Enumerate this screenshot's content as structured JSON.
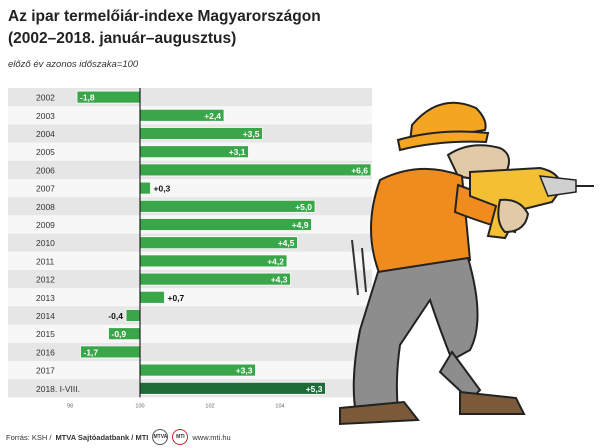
{
  "title": "Az ipar termelőiár-indexe Magyarországon (2002–2018. január–augusztus)",
  "subtitle": "előző év azonos időszaka=100",
  "footer": {
    "source": "Forrás: KSH / ",
    "credit": "MTVA Sajtóadatbank / MTI",
    "url": "www.mti.hu",
    "logo1": "MTVA",
    "logo2": "MTI"
  },
  "colors": {
    "bar": "#3aa64a",
    "bar_last": "#1e6b37",
    "row_a": "#e6e6e6",
    "row_b": "#f7f7f7"
  },
  "chart_data": {
    "type": "bar",
    "orientation": "horizontal",
    "baseline": 100,
    "categories": [
      "2002",
      "2003",
      "2004",
      "2005",
      "2006",
      "2007",
      "2008",
      "2009",
      "2010",
      "2011",
      "2012",
      "2013",
      "2014",
      "2015",
      "2016",
      "2017",
      "2018. I-VIII."
    ],
    "values": [
      98.2,
      102.4,
      103.5,
      103.1,
      106.6,
      100.3,
      105.0,
      104.9,
      104.5,
      104.2,
      104.3,
      100.7,
      99.6,
      99.1,
      98.3,
      103.3,
      105.3
    ],
    "data_labels": [
      "-1,8",
      "+2,4",
      "+3,5",
      "+3,1",
      "+6,6",
      "+0,3",
      "+5,0",
      "+4,9",
      "+4,5",
      "+4,2",
      "+4,3",
      "+0,7",
      "-0,4",
      "-0,9",
      "-1,7",
      "+3,3",
      "+5,3"
    ],
    "x_ticks": [
      98,
      100,
      102,
      104
    ],
    "xlim": [
      97.5,
      106.8
    ]
  }
}
